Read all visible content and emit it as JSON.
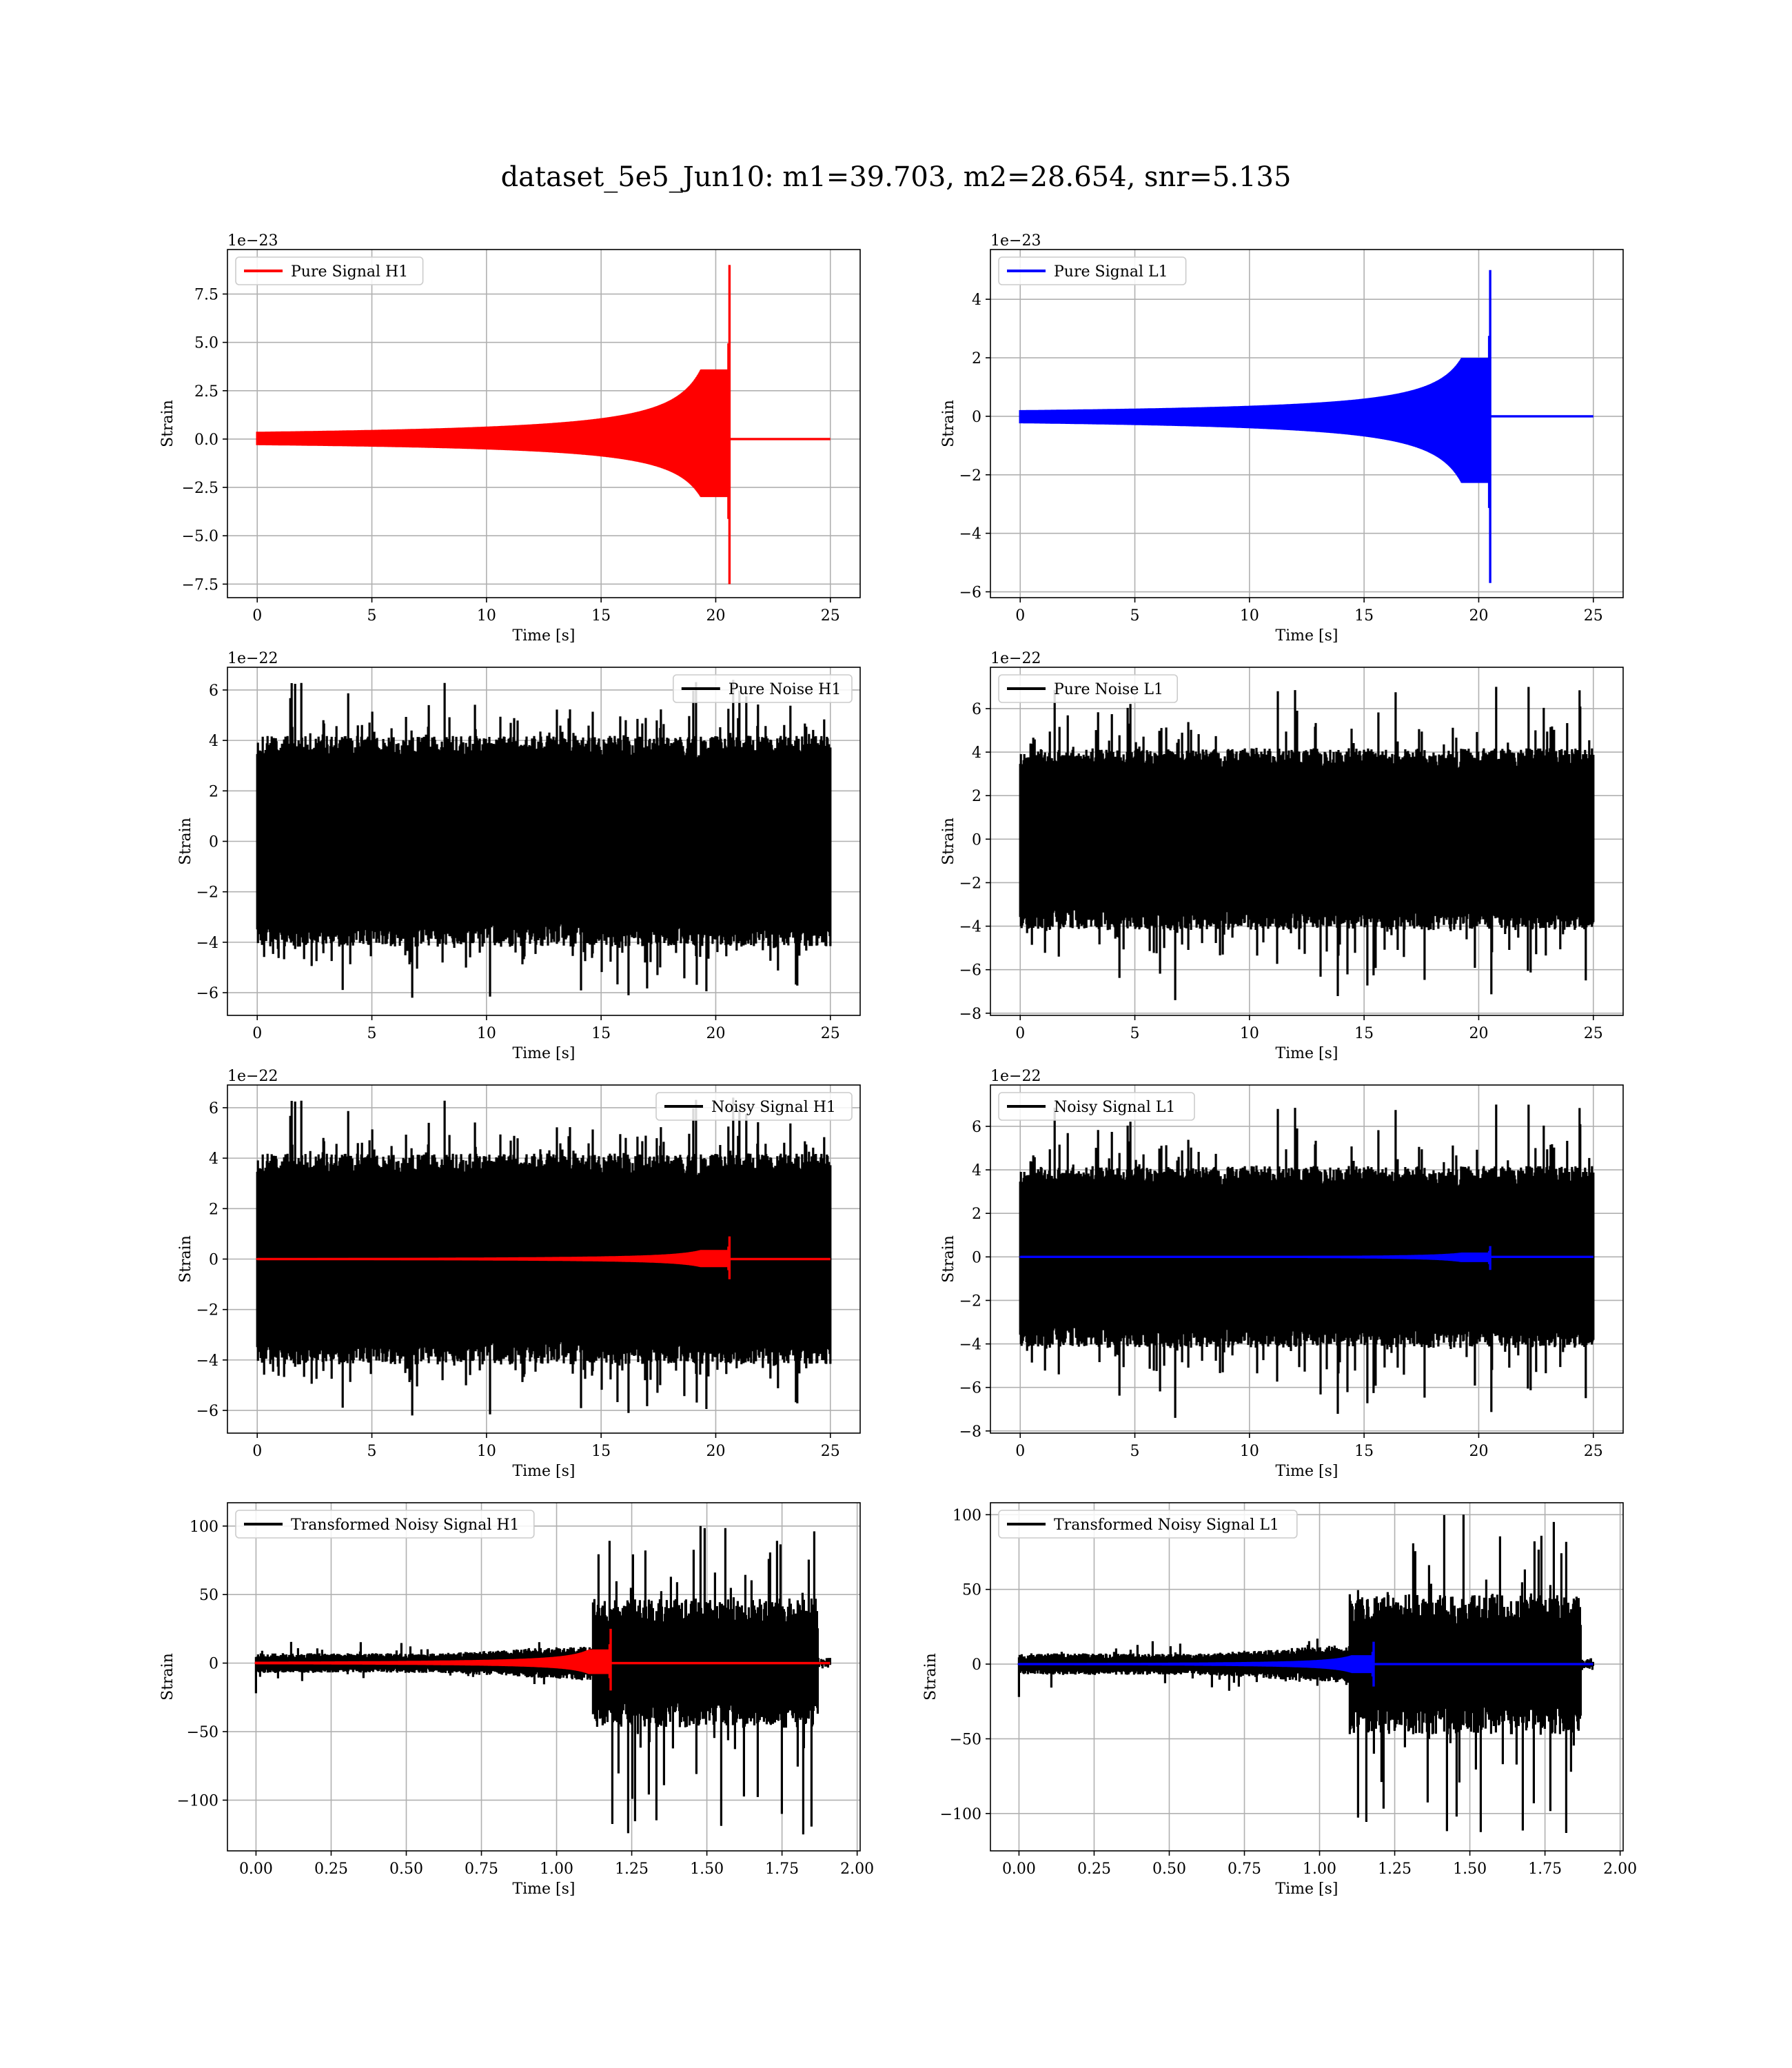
{
  "figure": {
    "suptitle": "dataset_5e5_Jun10: m1=39.703, m2=28.654, snr=5.135"
  },
  "chart_data": [
    {
      "type": "line",
      "series": [
        {
          "name": "Pure Signal H1",
          "color": "#ff0000",
          "kind": "chirp",
          "amplitude": 9.0,
          "min_amplitude": -7.5,
          "merger_x": 20.6,
          "start_x": 0,
          "end_x": 25
        }
      ],
      "legend": "upper left",
      "offset_text": "1e−23",
      "xlabel": "Time [s]",
      "ylabel": "Strain",
      "xlim": [
        -1.3,
        26.3
      ],
      "ylim": [
        -8.2,
        9.8
      ],
      "xticks": [
        0,
        5,
        10,
        15,
        20,
        25
      ],
      "xtick_labels": [
        "0",
        "5",
        "10",
        "15",
        "20",
        "25"
      ],
      "yticks": [
        -7.5,
        -5.0,
        -2.5,
        0.0,
        2.5,
        5.0,
        7.5
      ],
      "ytick_labels": [
        "−7.5",
        "−5.0",
        "−2.5",
        "0.0",
        "2.5",
        "5.0",
        "7.5"
      ],
      "grid": true
    },
    {
      "type": "line",
      "series": [
        {
          "name": "Pure Signal L1",
          "color": "#0000ff",
          "kind": "chirp",
          "amplitude": 5.0,
          "min_amplitude": -5.7,
          "merger_x": 20.5,
          "start_x": 0,
          "end_x": 25
        }
      ],
      "legend": "upper left",
      "offset_text": "1e−23",
      "xlabel": "Time [s]",
      "ylabel": "Strain",
      "xlim": [
        -1.3,
        26.3
      ],
      "ylim": [
        -6.2,
        5.7
      ],
      "xticks": [
        0,
        5,
        10,
        15,
        20,
        25
      ],
      "xtick_labels": [
        "0",
        "5",
        "10",
        "15",
        "20",
        "25"
      ],
      "yticks": [
        -6,
        -4,
        -2,
        0,
        2,
        4
      ],
      "ytick_labels": [
        "−6",
        "−4",
        "−2",
        "0",
        "2",
        "4"
      ],
      "grid": true
    },
    {
      "type": "line",
      "series": [
        {
          "name": "Pure Noise H1",
          "color": "#000000",
          "kind": "noise",
          "band": 3.8,
          "peak_max": 6.4,
          "peak_min": -6.2,
          "start_x": 0,
          "end_x": 25,
          "seed": 11
        }
      ],
      "legend": "upper right",
      "offset_text": "1e−22",
      "xlabel": "Time [s]",
      "ylabel": "Strain",
      "xlim": [
        -1.3,
        26.3
      ],
      "ylim": [
        -6.9,
        6.9
      ],
      "xticks": [
        0,
        5,
        10,
        15,
        20,
        25
      ],
      "xtick_labels": [
        "0",
        "5",
        "10",
        "15",
        "20",
        "25"
      ],
      "yticks": [
        -6,
        -4,
        -2,
        0,
        2,
        4,
        6
      ],
      "ytick_labels": [
        "−6",
        "−4",
        "−2",
        "0",
        "2",
        "4",
        "6"
      ],
      "grid": true
    },
    {
      "type": "line",
      "series": [
        {
          "name": "Pure Noise L1",
          "color": "#000000",
          "kind": "noise",
          "band": 3.8,
          "peak_max": 7.0,
          "peak_min": -7.4,
          "start_x": 0,
          "end_x": 25,
          "seed": 23
        }
      ],
      "legend": "upper left",
      "offset_text": "1e−22",
      "xlabel": "Time [s]",
      "ylabel": "Strain",
      "xlim": [
        -1.3,
        26.3
      ],
      "ylim": [
        -8.1,
        7.9
      ],
      "xticks": [
        0,
        5,
        10,
        15,
        20,
        25
      ],
      "xtick_labels": [
        "0",
        "5",
        "10",
        "15",
        "20",
        "25"
      ],
      "yticks": [
        -8,
        -6,
        -4,
        -2,
        0,
        2,
        4,
        6
      ],
      "ytick_labels": [
        "−8",
        "−6",
        "−4",
        "−2",
        "0",
        "2",
        "4",
        "6"
      ],
      "grid": true
    },
    {
      "type": "line",
      "series": [
        {
          "name": "Noisy Signal H1",
          "color": "#000000",
          "kind": "noise",
          "band": 3.8,
          "peak_max": 6.4,
          "peak_min": -6.2,
          "start_x": 0,
          "end_x": 25,
          "seed": 11
        },
        {
          "color": "#ff0000",
          "kind": "chirp",
          "amplitude": 0.9,
          "min_amplitude": -0.8,
          "merger_x": 20.6,
          "start_x": 0,
          "end_x": 25
        }
      ],
      "legend": "upper right",
      "offset_text": "1e−22",
      "xlabel": "Time [s]",
      "ylabel": "Strain",
      "xlim": [
        -1.3,
        26.3
      ],
      "ylim": [
        -6.9,
        6.9
      ],
      "xticks": [
        0,
        5,
        10,
        15,
        20,
        25
      ],
      "xtick_labels": [
        "0",
        "5",
        "10",
        "15",
        "20",
        "25"
      ],
      "yticks": [
        -6,
        -4,
        -2,
        0,
        2,
        4,
        6
      ],
      "ytick_labels": [
        "−6",
        "−4",
        "−2",
        "0",
        "2",
        "4",
        "6"
      ],
      "grid": true
    },
    {
      "type": "line",
      "series": [
        {
          "name": "Noisy Signal L1",
          "color": "#000000",
          "kind": "noise",
          "band": 3.8,
          "peak_max": 7.0,
          "peak_min": -7.4,
          "start_x": 0,
          "end_x": 25,
          "seed": 23
        },
        {
          "color": "#0000ff",
          "kind": "chirp",
          "amplitude": 0.5,
          "min_amplitude": -0.6,
          "merger_x": 20.5,
          "start_x": 0,
          "end_x": 25
        }
      ],
      "legend": "upper left",
      "offset_text": "1e−22",
      "xlabel": "Time [s]",
      "ylabel": "Strain",
      "xlim": [
        -1.3,
        26.3
      ],
      "ylim": [
        -8.1,
        7.9
      ],
      "xticks": [
        0,
        5,
        10,
        15,
        20,
        25
      ],
      "xtick_labels": [
        "0",
        "5",
        "10",
        "15",
        "20",
        "25"
      ],
      "yticks": [
        -8,
        -6,
        -4,
        -2,
        0,
        2,
        4,
        6
      ],
      "ytick_labels": [
        "−8",
        "−6",
        "−4",
        "−2",
        "0",
        "2",
        "4",
        "6"
      ],
      "grid": true
    },
    {
      "type": "line",
      "series": [
        {
          "name": "Transformed Noisy Signal H1",
          "color": "#000000",
          "kind": "whitened",
          "low_band": 6,
          "high_band": 45,
          "step_x": 1.12,
          "peak_max": 100,
          "peak_min": -125,
          "start_x": 0,
          "end_x": 1.91,
          "cutoff_x": 1.87,
          "seed": 37
        },
        {
          "color": "#ff0000",
          "kind": "chirp",
          "amplitude": 25,
          "min_amplitude": -20,
          "merger_x": 1.18,
          "start_x": 0,
          "end_x": 1.91
        }
      ],
      "legend": "upper left",
      "xlabel": "Time [s]",
      "ylabel": "Strain",
      "xlim": [
        -0.095,
        2.01
      ],
      "ylim": [
        -137,
        117
      ],
      "xticks": [
        0.0,
        0.25,
        0.5,
        0.75,
        1.0,
        1.25,
        1.5,
        1.75,
        2.0
      ],
      "xtick_labels": [
        "0.00",
        "0.25",
        "0.50",
        "0.75",
        "1.00",
        "1.25",
        "1.50",
        "1.75",
        "2.00"
      ],
      "yticks": [
        -100,
        -50,
        0,
        50,
        100
      ],
      "ytick_labels": [
        "−100",
        "−50",
        "0",
        "50",
        "100"
      ],
      "grid": true
    },
    {
      "type": "line",
      "series": [
        {
          "name": "Transformed Noisy Signal L1",
          "color": "#000000",
          "kind": "whitened",
          "low_band": 6,
          "high_band": 45,
          "step_x": 1.1,
          "peak_max": 100,
          "peak_min": -113,
          "start_x": 0,
          "end_x": 1.91,
          "cutoff_x": 1.87,
          "seed": 53
        },
        {
          "color": "#0000ff",
          "kind": "chirp",
          "amplitude": 15,
          "min_amplitude": -15,
          "merger_x": 1.18,
          "start_x": 0,
          "end_x": 1.91
        }
      ],
      "legend": "upper left",
      "xlabel": "Time [s]",
      "ylabel": "Strain",
      "xlim": [
        -0.095,
        2.01
      ],
      "ylim": [
        -125,
        108
      ],
      "xticks": [
        0.0,
        0.25,
        0.5,
        0.75,
        1.0,
        1.25,
        1.5,
        1.75,
        2.0
      ],
      "xtick_labels": [
        "0.00",
        "0.25",
        "0.50",
        "0.75",
        "1.00",
        "1.25",
        "1.50",
        "1.75",
        "2.00"
      ],
      "yticks": [
        -100,
        -50,
        0,
        50,
        100
      ],
      "ytick_labels": [
        "−100",
        "−50",
        "0",
        "50",
        "100"
      ],
      "grid": true
    }
  ]
}
